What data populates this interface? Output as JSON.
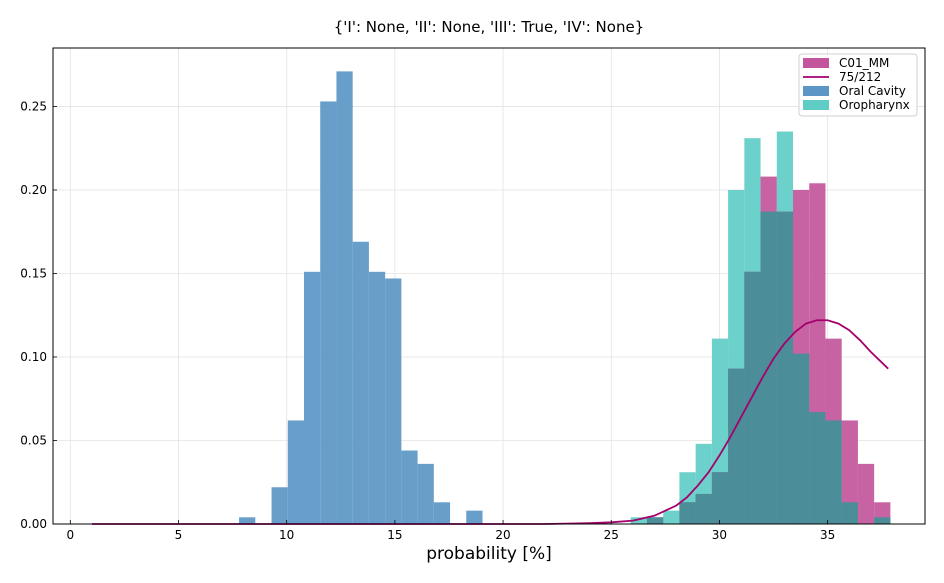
{
  "chart_data": {
    "type": "bar",
    "title": "{'I': None, 'II': None, 'III': True, 'IV': None}",
    "xlabel": "probability [%]",
    "ylabel": "",
    "xlim": [
      -0.8,
      39.5
    ],
    "ylim": [
      0,
      0.285
    ],
    "grid": true,
    "legend_position": "top-right",
    "xticks": [
      0,
      5,
      10,
      15,
      20,
      25,
      30,
      35
    ],
    "xtick_labels": [
      "0",
      "5",
      "10",
      "15",
      "20",
      "25",
      "30",
      "35"
    ],
    "yticks": [
      0,
      0.05,
      0.1,
      0.15,
      0.2,
      0.25
    ],
    "ytick_labels": [
      "0.00",
      "0.05",
      "0.10",
      "0.15",
      "0.20",
      "0.25"
    ],
    "legend": [
      {
        "label": "C01_MM",
        "kind": "patch",
        "color": "#c2559b"
      },
      {
        "label": "75/212",
        "kind": "line",
        "color": "#a5006b"
      },
      {
        "label": "Oral Cavity",
        "kind": "patch",
        "color": "#5b96c6"
      },
      {
        "label": "Oropharynx",
        "kind": "patch",
        "color": "#5fcdc6"
      }
    ],
    "histograms": [
      {
        "name": "Oral Cavity",
        "color": "#5b96c6",
        "bin_width": 0.75,
        "bins": [
          {
            "x0": 7.8,
            "y": 0.004
          },
          {
            "x0": 9.3,
            "y": 0.022
          },
          {
            "x0": 10.05,
            "y": 0.062
          },
          {
            "x0": 10.8,
            "y": 0.151
          },
          {
            "x0": 11.55,
            "y": 0.253
          },
          {
            "x0": 12.3,
            "y": 0.271
          },
          {
            "x0": 13.05,
            "y": 0.169
          },
          {
            "x0": 13.8,
            "y": 0.151
          },
          {
            "x0": 14.55,
            "y": 0.147
          },
          {
            "x0": 15.3,
            "y": 0.044
          },
          {
            "x0": 16.05,
            "y": 0.036
          },
          {
            "x0": 16.8,
            "y": 0.013
          },
          {
            "x0": 18.3,
            "y": 0.008
          }
        ]
      },
      {
        "name": "Oropharynx",
        "color": "#5fcdc6",
        "bin_width": 0.75,
        "bins": [
          {
            "x0": 25.9,
            "y": 0.004
          },
          {
            "x0": 26.65,
            "y": 0.004
          },
          {
            "x0": 27.4,
            "y": 0.008
          },
          {
            "x0": 28.15,
            "y": 0.031
          },
          {
            "x0": 28.9,
            "y": 0.048
          },
          {
            "x0": 29.65,
            "y": 0.111
          },
          {
            "x0": 30.4,
            "y": 0.2
          },
          {
            "x0": 31.15,
            "y": 0.231
          },
          {
            "x0": 31.9,
            "y": 0.187
          },
          {
            "x0": 32.65,
            "y": 0.235
          },
          {
            "x0": 33.4,
            "y": 0.102
          },
          {
            "x0": 34.15,
            "y": 0.067
          },
          {
            "x0": 34.9,
            "y": 0.062
          },
          {
            "x0": 35.65,
            "y": 0.013
          },
          {
            "x0": 37.15,
            "y": 0.004
          }
        ]
      },
      {
        "name": "C01_MM",
        "color": "#c2559b",
        "bin_width": 0.75,
        "bins": [
          {
            "x0": 26.65,
            "y": 0.004
          },
          {
            "x0": 28.15,
            "y": 0.013
          },
          {
            "x0": 28.9,
            "y": 0.018
          },
          {
            "x0": 29.65,
            "y": 0.031
          },
          {
            "x0": 30.4,
            "y": 0.093
          },
          {
            "x0": 31.15,
            "y": 0.151
          },
          {
            "x0": 31.9,
            "y": 0.208
          },
          {
            "x0": 32.65,
            "y": 0.187
          },
          {
            "x0": 33.4,
            "y": 0.2
          },
          {
            "x0": 34.15,
            "y": 0.204
          },
          {
            "x0": 34.9,
            "y": 0.111
          },
          {
            "x0": 35.65,
            "y": 0.062
          },
          {
            "x0": 36.4,
            "y": 0.036
          },
          {
            "x0": 37.15,
            "y": 0.013
          }
        ]
      }
    ],
    "line_series": {
      "name": "75/212",
      "color": "#a5006b",
      "x": [
        1.0,
        20,
        22,
        24,
        25,
        26,
        27,
        28,
        28.5,
        29,
        29.5,
        30,
        30.5,
        31,
        31.5,
        32,
        32.5,
        33,
        33.5,
        34,
        34.5,
        35,
        35.5,
        36,
        36.5,
        37,
        37.8
      ],
      "y": [
        0.0,
        0.0,
        0.0,
        0.0005,
        0.001,
        0.002,
        0.005,
        0.011,
        0.016,
        0.023,
        0.031,
        0.041,
        0.052,
        0.064,
        0.076,
        0.088,
        0.099,
        0.108,
        0.115,
        0.12,
        0.122,
        0.122,
        0.12,
        0.116,
        0.11,
        0.103,
        0.093
      ]
    }
  }
}
